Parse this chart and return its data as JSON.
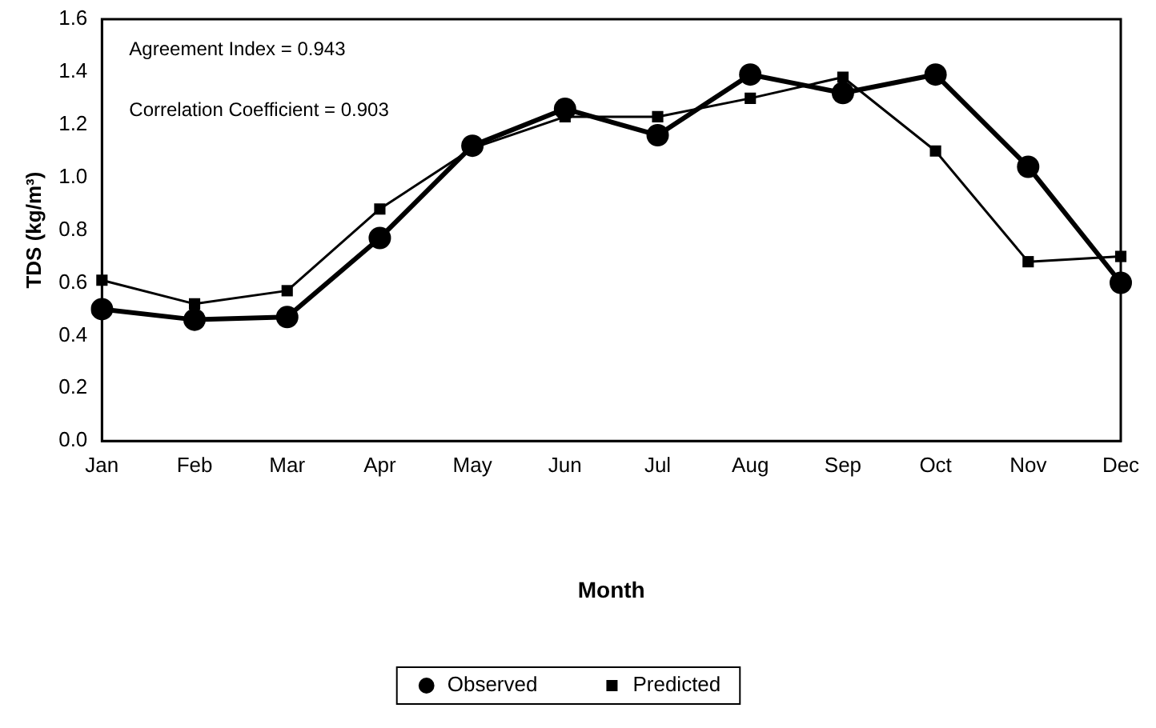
{
  "chart_data": {
    "type": "line",
    "xlabel": "Month",
    "ylabel": "TDS (kg/m³)",
    "categories": [
      "Jan",
      "Feb",
      "Mar",
      "Apr",
      "May",
      "Jun",
      "Jul",
      "Aug",
      "Sep",
      "Oct",
      "Nov",
      "Dec"
    ],
    "series": [
      {
        "name": "Observed",
        "color": "#000000",
        "marker": "circle",
        "values": [
          0.5,
          0.46,
          0.47,
          0.77,
          1.12,
          1.26,
          1.16,
          1.39,
          1.32,
          1.39,
          1.04,
          0.6
        ]
      },
      {
        "name": "Predicted",
        "color": "#000000",
        "marker": "square",
        "values": [
          0.61,
          0.52,
          0.57,
          0.88,
          1.11,
          1.23,
          1.23,
          1.3,
          1.38,
          1.1,
          0.68,
          0.7
        ]
      }
    ],
    "ylim": [
      0,
      1.6
    ],
    "yticks": [
      {
        "value": 0,
        "label": "0.0"
      },
      0.2,
      0.4,
      0.6,
      0.8,
      {
        "value": 1,
        "label": "1.0"
      },
      1.2,
      1.4,
      1.6
    ],
    "annotations": [
      "Agreement Index = 0.943",
      "Correlation Coefficient = 0.903"
    ],
    "grid": false,
    "legend": "bottom",
    "line_style": "solid"
  }
}
